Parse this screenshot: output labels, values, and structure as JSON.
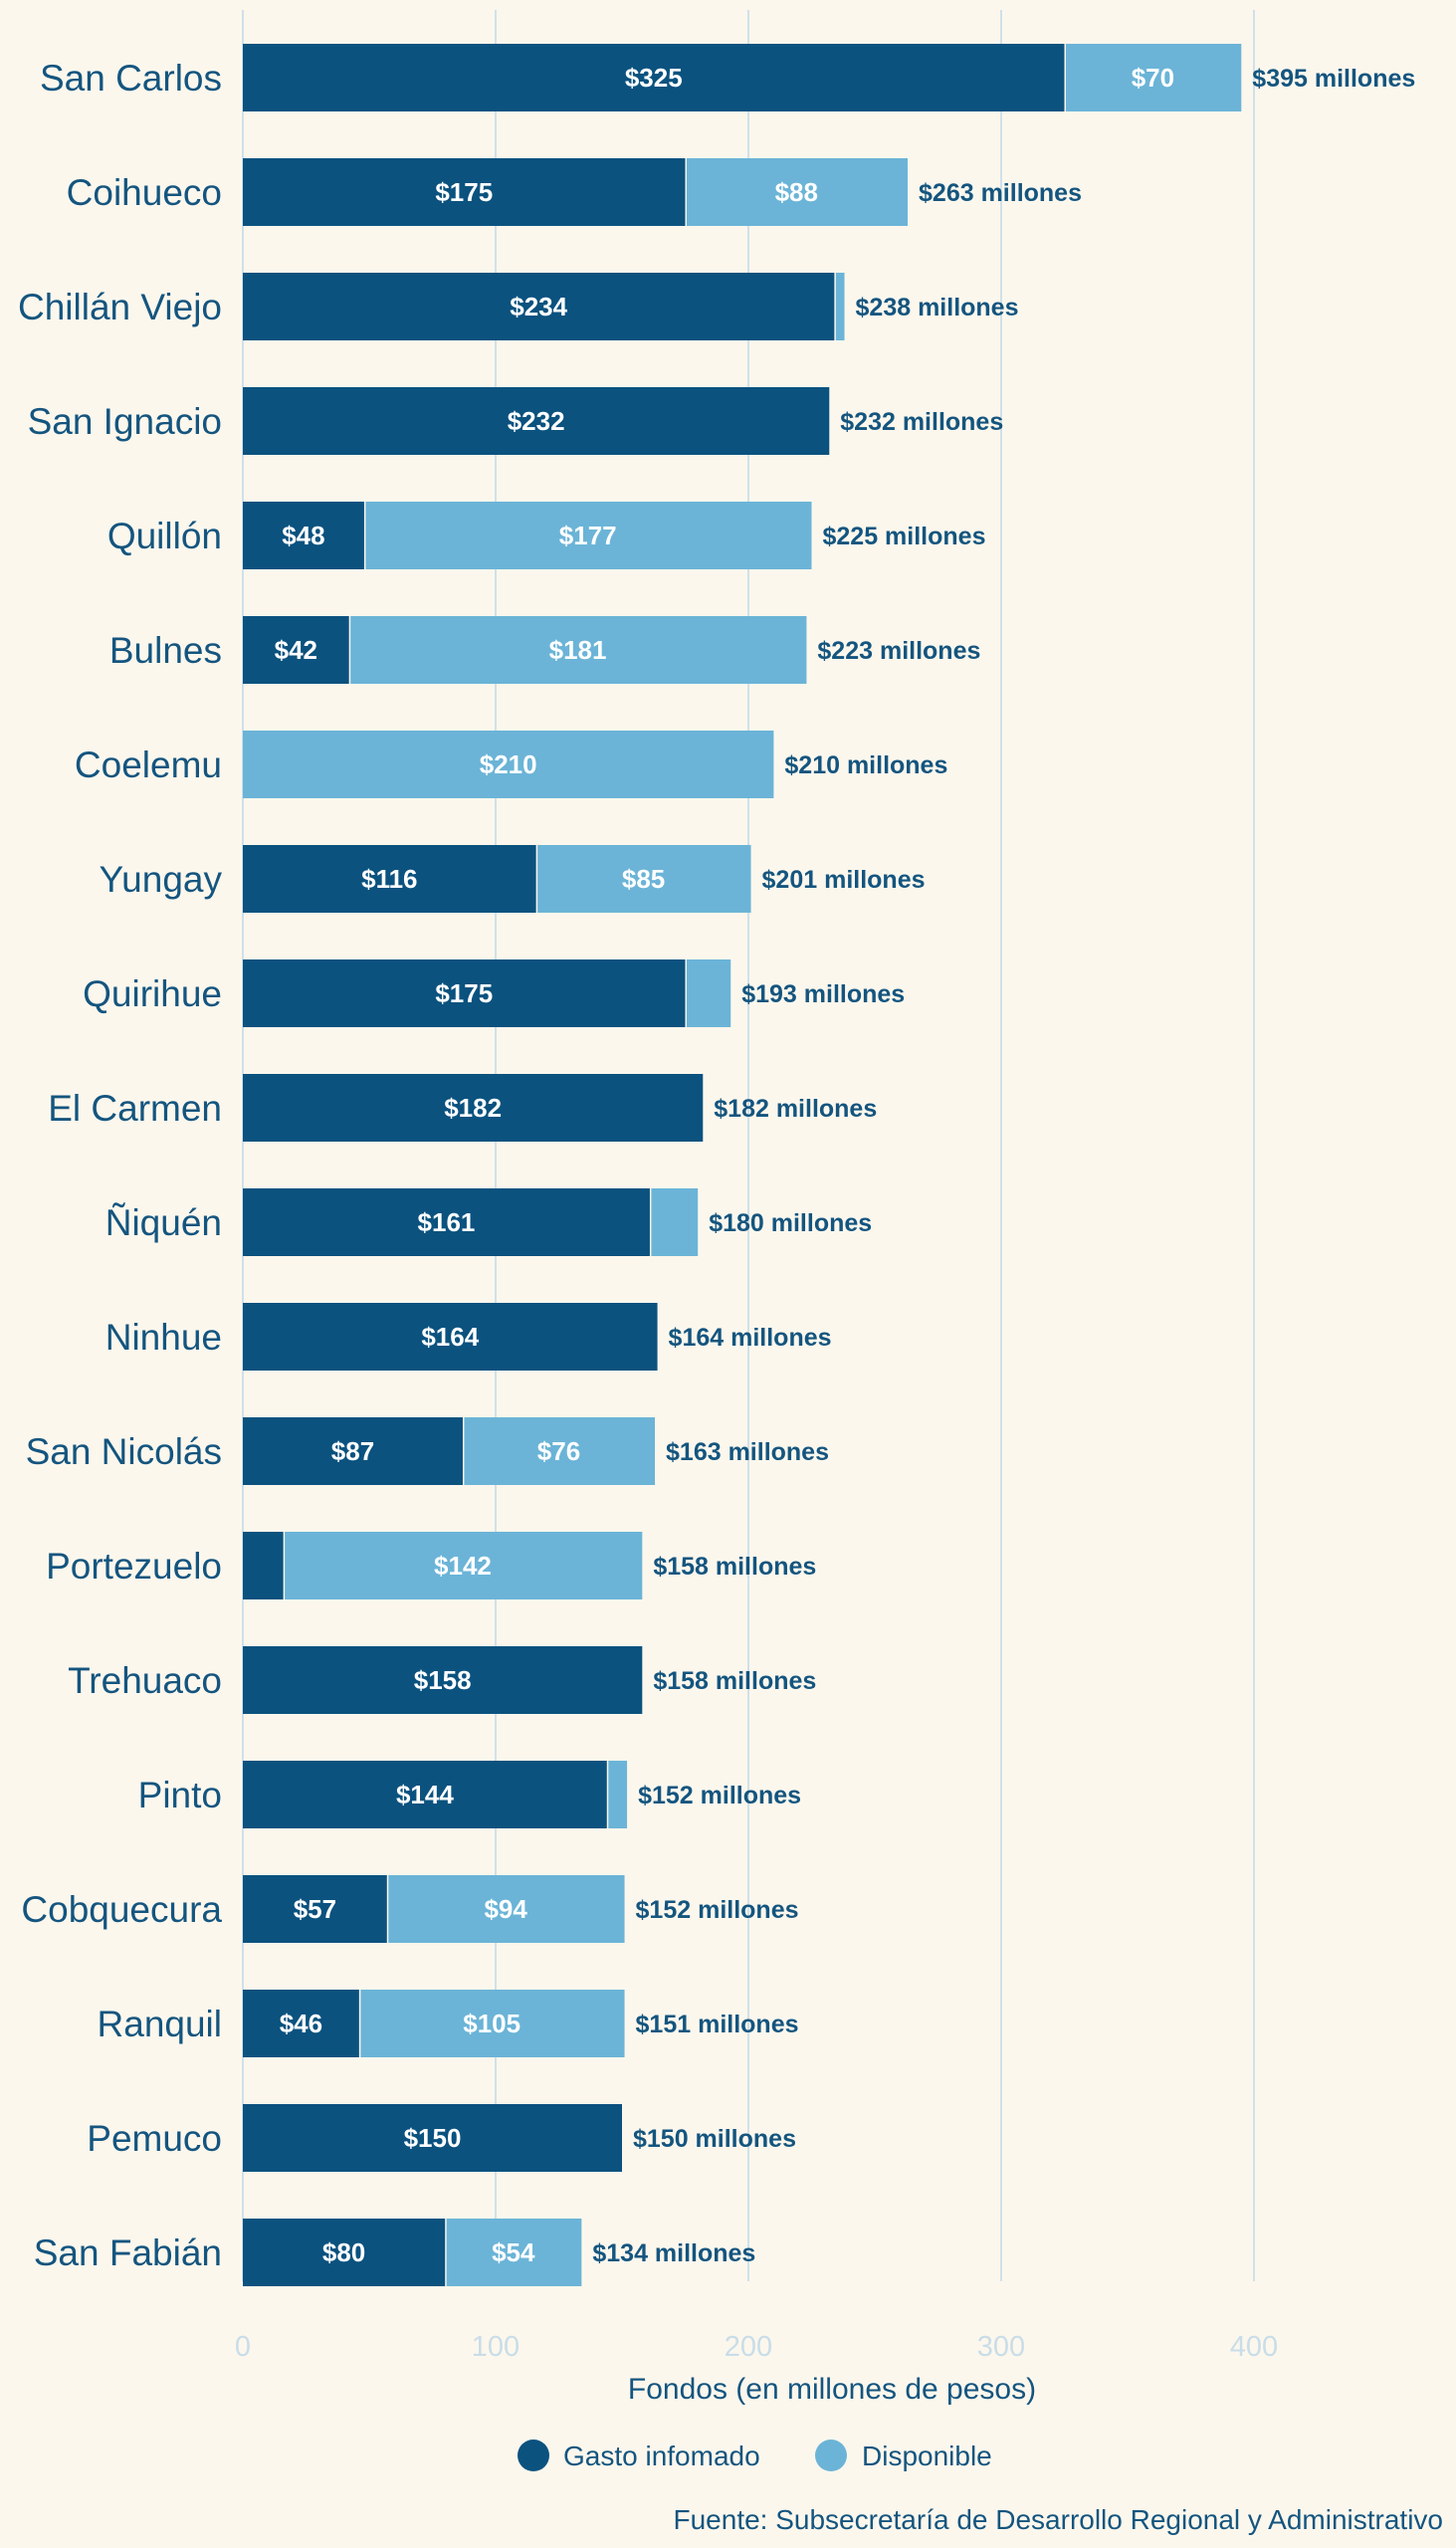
{
  "colors": {
    "background": "#fcf7ed",
    "gasto": "#0b527f",
    "disponible": "#6bb4d7",
    "grid": "#cfe1ea",
    "tick_text": "#c9dde8",
    "label_text": "#14557f"
  },
  "chart_data": {
    "type": "bar",
    "orientation": "horizontal",
    "stacked": true,
    "categories": [
      "San Carlos",
      "Coihueco",
      "Chillán Viejo",
      "San Ignacio",
      "Quillón",
      "Bulnes",
      "Coelemu",
      "Yungay",
      "Quirihue",
      "El Carmen",
      "Ñiquén",
      "Ninhue",
      "San Nicolás",
      "Portezuelo",
      "Trehuaco",
      "Pinto",
      "Cobquecura",
      "Ranquil",
      "Pemuco",
      "San Fabián"
    ],
    "series": [
      {
        "name": "Gasto infomado",
        "color": "#0b527f",
        "values": [
          325,
          175,
          234,
          232,
          48,
          42,
          0,
          116,
          175,
          182,
          161,
          164,
          87,
          16,
          158,
          144,
          57,
          46,
          150,
          80
        ],
        "labels": [
          "$325",
          "$175",
          "$234",
          "$232",
          "$48",
          "$42",
          "",
          "$116",
          "$175",
          "$182",
          "$161",
          "$164",
          "$87",
          "",
          "$158",
          "$144",
          "$57",
          "$46",
          "$150",
          "$80"
        ]
      },
      {
        "name": "Disponible",
        "color": "#6bb4d7",
        "values": [
          70,
          88,
          4,
          0,
          177,
          181,
          210,
          85,
          18,
          0,
          19,
          0,
          76,
          142,
          0,
          8,
          94,
          105,
          0,
          54
        ],
        "labels": [
          "$70",
          "$88",
          "",
          "",
          "$177",
          "$181",
          "$210",
          "$85",
          "",
          "",
          "",
          "",
          "$76",
          "$142",
          "",
          "",
          "$94",
          "$105",
          "",
          "$54"
        ]
      }
    ],
    "total_labels": [
      "$395 millones",
      "$263 millones",
      "$238 millones",
      "$232 millones",
      "$225 millones",
      "$223 millones",
      "$210 millones",
      "$201 millones",
      "$193 millones",
      "$182 millones",
      "$180 millones",
      "$164 millones",
      "$163 millones",
      "$158 millones",
      "$158 millones",
      "$152 millones",
      "$152 millones",
      "$151 millones",
      "$150 millones",
      "$134 millones"
    ],
    "xlim": [
      0,
      480
    ],
    "xticks": [
      0,
      100,
      200,
      300,
      400
    ],
    "xlabel": "Fondos (en millones de pesos)",
    "ylabel": "",
    "grid": true,
    "legend_position": "bottom-center",
    "source": "Fuente: Subsecretaría de Desarrollo Regional y Administrativo"
  }
}
